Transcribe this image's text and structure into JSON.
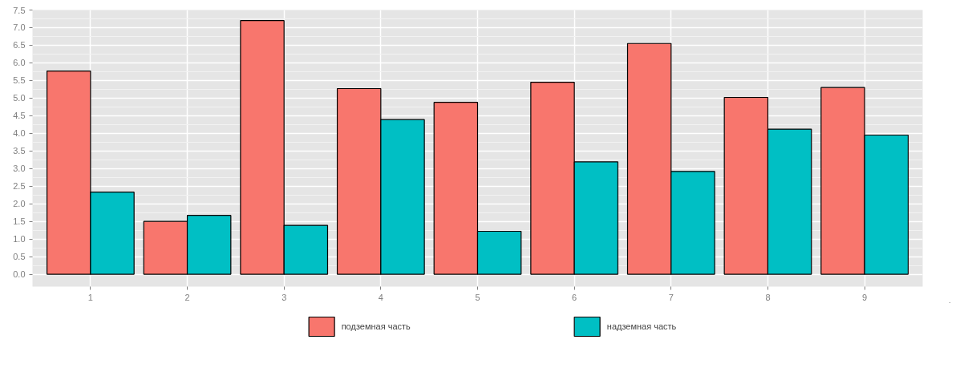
{
  "chart_data": {
    "type": "bar",
    "categories": [
      "1",
      "2",
      "3",
      "4",
      "5",
      "6",
      "7",
      "8",
      "9"
    ],
    "series": [
      {
        "name": "подземная часть",
        "color": "#f8766d",
        "values": [
          5.77,
          1.5,
          7.2,
          5.27,
          4.88,
          5.45,
          6.55,
          5.02,
          5.3
        ]
      },
      {
        "name": "надземная часть",
        "color": "#00bfc4",
        "values": [
          2.33,
          1.67,
          1.39,
          4.39,
          1.22,
          3.19,
          2.92,
          4.12,
          3.95
        ]
      }
    ],
    "ylim": [
      -0.35,
      7.5
    ],
    "yticks": [
      {
        "value": 0,
        "label": "0.0"
      },
      {
        "value": 0.5,
        "label": "0.5"
      },
      {
        "value": 1,
        "label": "1.0"
      },
      {
        "value": 1.5,
        "label": "1.5"
      },
      {
        "value": 2,
        "label": "2.0"
      },
      {
        "value": 2.5,
        "label": "2.5"
      },
      {
        "value": 3,
        "label": "3.0"
      },
      {
        "value": 3.5,
        "label": "3.5"
      },
      {
        "value": 4,
        "label": "4.0"
      },
      {
        "value": 4.5,
        "label": "4.5"
      },
      {
        "value": 5,
        "label": "5.0"
      },
      {
        "value": 5.5,
        "label": "5.5"
      },
      {
        "value": 6,
        "label": "6.0"
      },
      {
        "value": 6.5,
        "label": "6.5"
      },
      {
        "value": 7,
        "label": "7.0"
      },
      {
        "value": 7.5,
        "label": "7.5"
      }
    ],
    "grid": true,
    "legend": "bottom"
  }
}
